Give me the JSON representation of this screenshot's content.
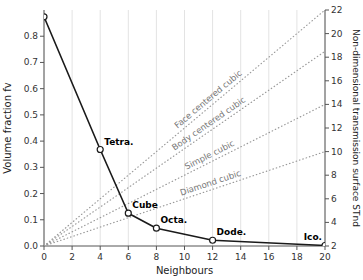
{
  "chart_data": {
    "type": "line",
    "xlabel": "Neighbours",
    "ylabel": "Volume fraction fv",
    "y2label": "Non-dimensional transmission surface STnd",
    "xlim": [
      0,
      20
    ],
    "xticks": [
      0,
      2,
      4,
      6,
      8,
      10,
      12,
      14,
      16,
      18,
      20
    ],
    "ylim": [
      0,
      0.9
    ],
    "yticks": [
      {
        "value": 0.0,
        "label": "0.0"
      },
      0.1,
      0.2,
      0.3,
      0.4,
      0.5,
      0.6,
      0.7,
      0.8
    ],
    "y2lim": [
      2,
      22
    ],
    "y2ticks": [
      2,
      4,
      6,
      8,
      10,
      12,
      14,
      16,
      18,
      20,
      22
    ],
    "grid": "x",
    "series": [
      {
        "name": "Diamond cubic",
        "axis": "y2",
        "x": [
          0,
          20
        ],
        "values": [
          2,
          10
        ],
        "color": "#999999",
        "line_style": "dotted"
      },
      {
        "name": "Simple cubic",
        "axis": "y2",
        "x": [
          0,
          20
        ],
        "values": [
          2,
          14
        ],
        "color": "#999999",
        "line_style": "dotted"
      },
      {
        "name": "Body centered cubic",
        "axis": "y2",
        "x": [
          0,
          20
        ],
        "values": [
          2,
          18.5
        ],
        "color": "#999999",
        "line_style": "dotted"
      },
      {
        "name": "Face centered cubic",
        "axis": "y2",
        "x": [
          0,
          20
        ],
        "values": [
          2,
          22
        ],
        "color": "#999999",
        "line_style": "dotted"
      },
      {
        "x": [
          0,
          4,
          6,
          8,
          12,
          20
        ],
        "values": [
          0.874,
          0.368,
          0.125,
          0.068,
          0.022,
          0.002
        ],
        "color": "#1a1a1a",
        "line_style": "solid",
        "marker": "circle",
        "point_labels": [
          null,
          "Tetra.",
          "Cube",
          "Octa.",
          "Dode.",
          "Ico."
        ]
      }
    ]
  }
}
